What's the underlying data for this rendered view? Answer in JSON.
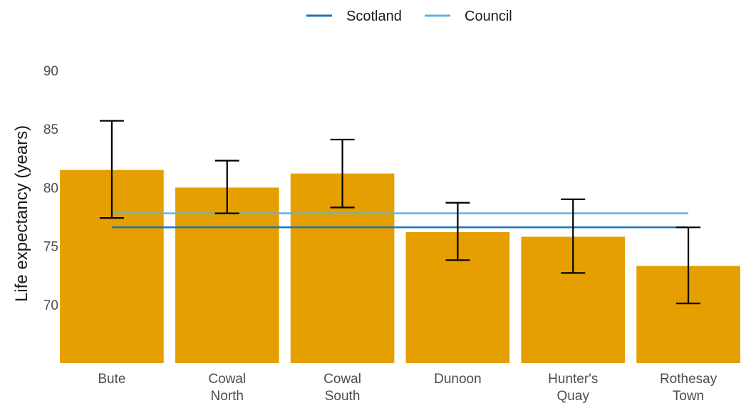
{
  "chart_data": {
    "type": "bar",
    "title": "",
    "xlabel": "",
    "ylabel": "Life expectancy (years)",
    "ylim": [
      65,
      90
    ],
    "yticks": [
      70,
      75,
      80,
      85,
      90
    ],
    "grid": false,
    "legend_position": "top-center",
    "bar_color": "#E69F00",
    "categories": [
      [
        "Bute"
      ],
      [
        "Cowal",
        "North"
      ],
      [
        "Cowal",
        "South"
      ],
      [
        "Dunoon"
      ],
      [
        "Hunter's",
        "Quay"
      ],
      [
        "Rothesay",
        "Town"
      ]
    ],
    "values": [
      81.5,
      80.0,
      81.2,
      76.2,
      75.8,
      73.3
    ],
    "error_low": [
      77.4,
      77.8,
      78.3,
      73.8,
      72.7,
      70.1
    ],
    "error_high": [
      85.7,
      82.3,
      84.1,
      78.7,
      79.0,
      76.6
    ],
    "reference_lines": [
      {
        "name": "Scotland",
        "value": 76.6,
        "color": "#1B75BB"
      },
      {
        "name": "Council",
        "value": 77.8,
        "color": "#5BB4E5"
      }
    ]
  }
}
